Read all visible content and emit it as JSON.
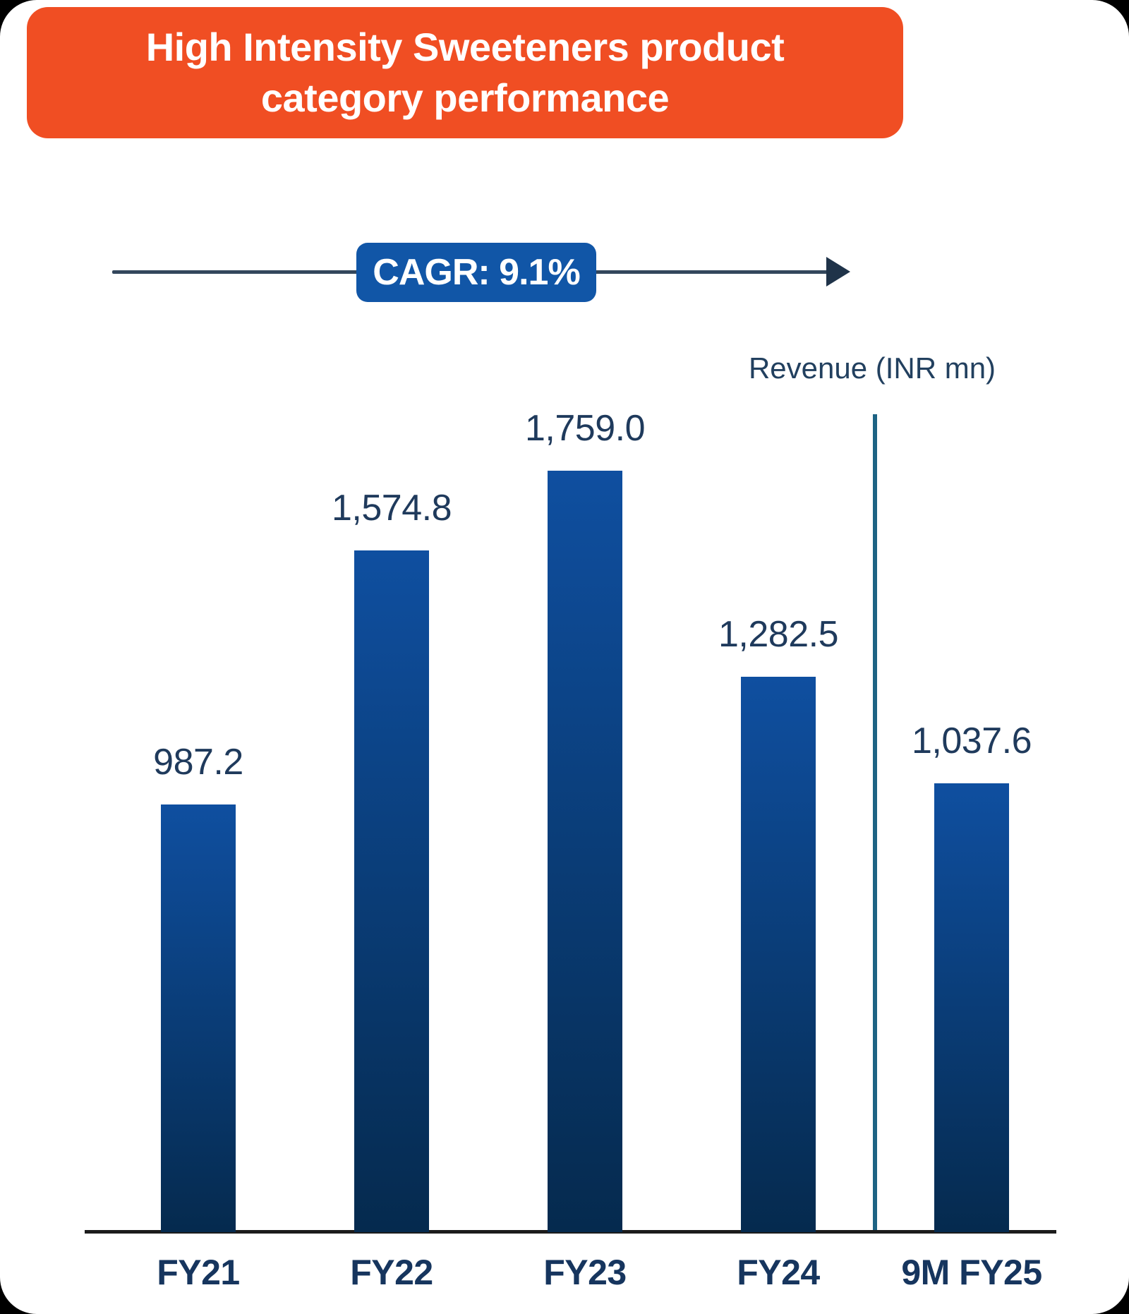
{
  "page": {
    "background_color": "#000000",
    "card_background_color": "#FFFFFF"
  },
  "header": {
    "title_line1": "High Intensity Sweeteners product",
    "title_line2": "category performance",
    "bg_color": "#F04E23",
    "text_color": "#FFFFFF"
  },
  "cagr": {
    "label": "CAGR: 9.1%",
    "badge_bg": "#1156A7",
    "arrow_line_color": "#33475C",
    "arrow_head_color": "#1F3349"
  },
  "axis_label": {
    "text": "Revenue (INR mn)",
    "color": "#22405F"
  },
  "chart_data": {
    "type": "bar",
    "title": "High Intensity Sweeteners product category performance",
    "subtitle": "CAGR: 9.1%",
    "categories": [
      "FY21",
      "FY22",
      "FY23",
      "FY24",
      "9M FY25"
    ],
    "values": [
      987.2,
      1574.8,
      1759.0,
      1282.5,
      1037.6
    ],
    "value_labels": [
      "987.2",
      "1,574.8",
      "1,759.0",
      "1,282.5",
      "1,037.6"
    ],
    "series_name": "Revenue",
    "ylabel": "Revenue (INR mn)",
    "xlabel": "",
    "cagr_pct": 9.1,
    "separator_between": [
      "FY24",
      "9M FY25"
    ],
    "grid": false,
    "legend": false,
    "y_axis_visible": false,
    "bar_color_top": "#0F4FA0",
    "bar_color_bottom": "#052A4E",
    "value_label_color": "#1F3A5C",
    "category_label_color": "#16355E",
    "axis_line_color": "#1C1C1C",
    "separator_color": "#1D6384"
  }
}
